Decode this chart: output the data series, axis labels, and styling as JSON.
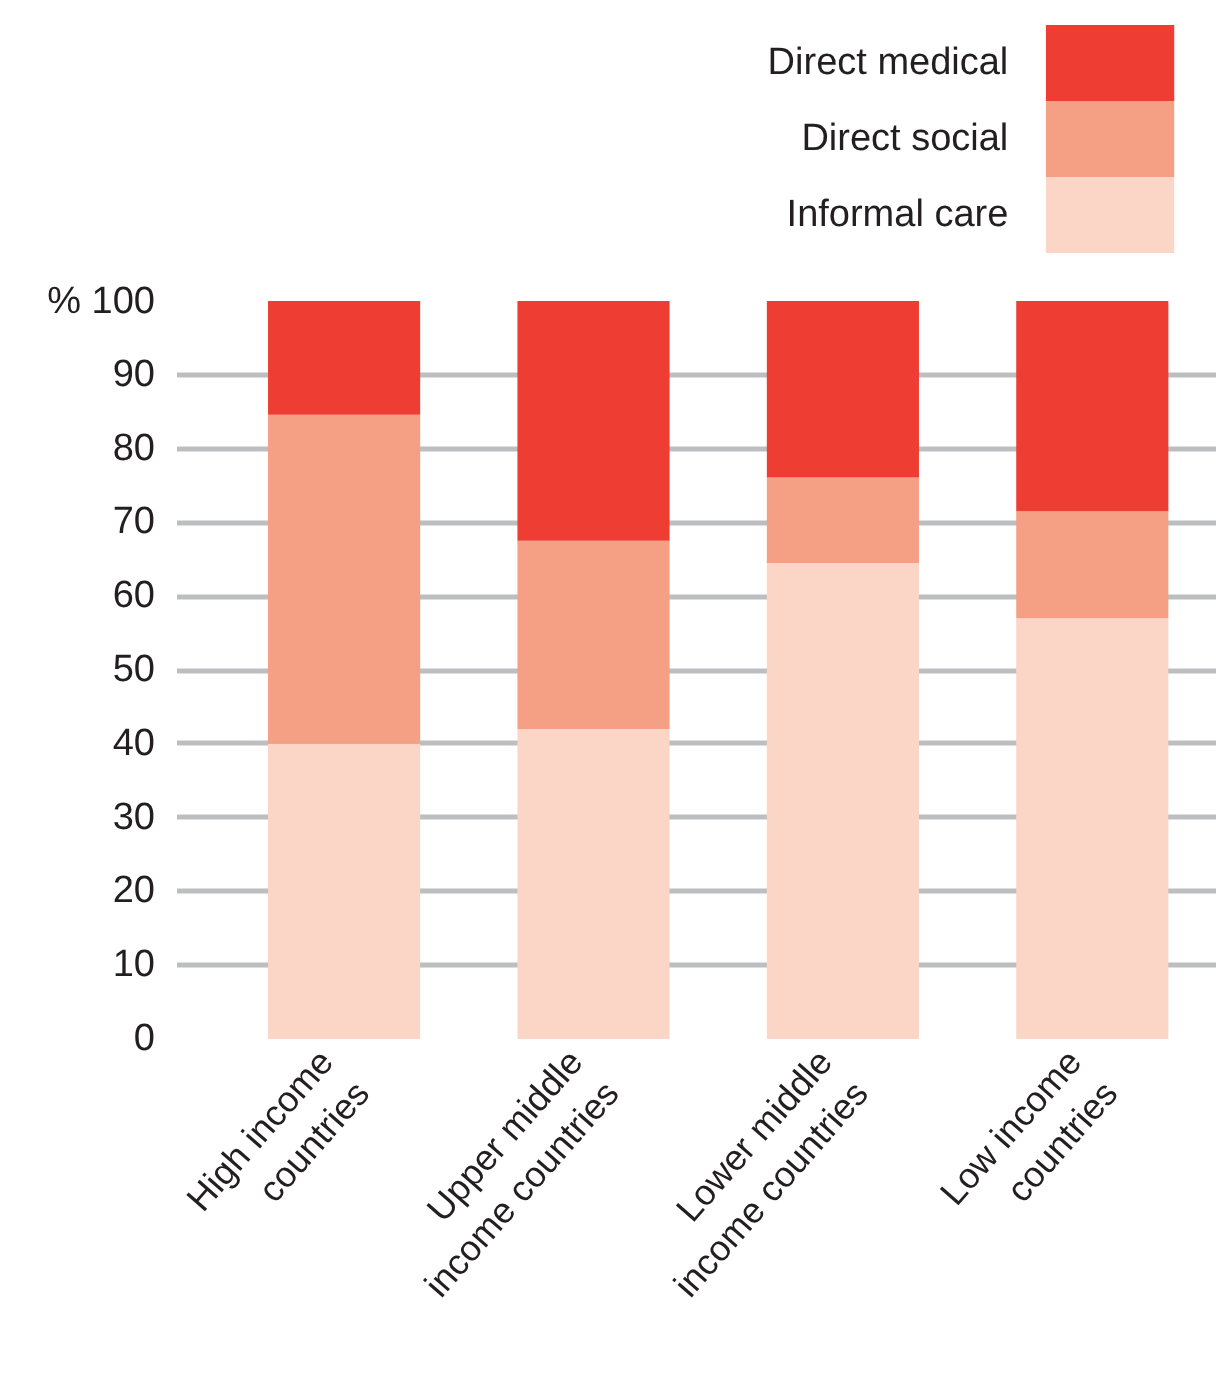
{
  "chart_data": {
    "type": "bar",
    "stacked": true,
    "categories": [
      "High income countries",
      "Upper middle income countries",
      "Lower middle income countries",
      "Low income countries"
    ],
    "series": [
      {
        "name": "Informal care",
        "color": "#fbd5c5",
        "values": [
          40,
          42,
          64.5,
          57
        ]
      },
      {
        "name": "Direct social",
        "color": "#f59f85",
        "values": [
          44.6,
          25.5,
          11.6,
          14.5
        ]
      },
      {
        "name": "Direct medical",
        "color": "#ee3e34",
        "values": [
          15.4,
          32.5,
          23.9,
          28.5
        ]
      }
    ],
    "ylim": [
      0,
      100
    ],
    "yticks": [
      0,
      10,
      20,
      30,
      40,
      50,
      60,
      70,
      80,
      90,
      {
        "value": 100,
        "label": "% 100"
      }
    ],
    "grid": "y",
    "legend": "top right"
  }
}
